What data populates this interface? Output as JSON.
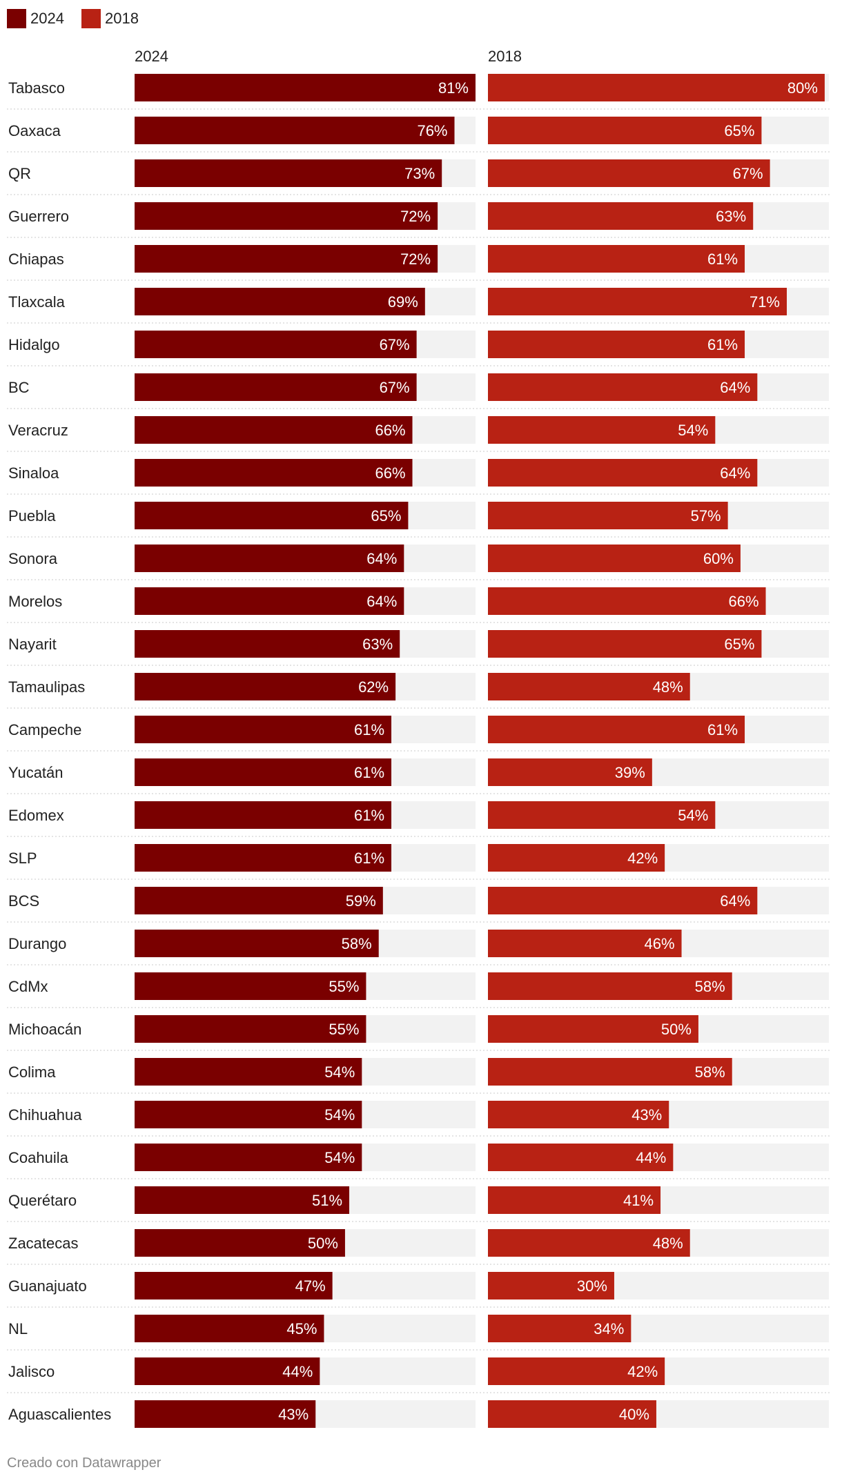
{
  "chart_data": {
    "type": "bar",
    "orientation": "horizontal",
    "layout": "small-multiples",
    "categories": [
      "Tabasco",
      "Oaxaca",
      "QR",
      "Guerrero",
      "Chiapas",
      "Tlaxcala",
      "Hidalgo",
      "BC",
      "Veracruz",
      "Sinaloa",
      "Puebla",
      "Sonora",
      "Morelos",
      "Nayarit",
      "Tamaulipas",
      "Campeche",
      "Yucatán",
      "Edomex",
      "SLP",
      "BCS",
      "Durango",
      "CdMx",
      "Michoacán",
      "Colima",
      "Chihuahua",
      "Coahuila",
      "Querétaro",
      "Zacatecas",
      "Guanajuato",
      "NL",
      "Jalisco",
      "Aguascalientes"
    ],
    "series": [
      {
        "name": "2024",
        "color": "#7a0000",
        "values": [
          81,
          76,
          73,
          72,
          72,
          69,
          67,
          67,
          66,
          66,
          65,
          64,
          64,
          63,
          62,
          61,
          61,
          61,
          61,
          59,
          58,
          55,
          55,
          54,
          54,
          54,
          51,
          50,
          47,
          45,
          44,
          43
        ]
      },
      {
        "name": "2018",
        "color": "#b82214",
        "values": [
          80,
          65,
          67,
          63,
          61,
          71,
          61,
          64,
          54,
          64,
          57,
          60,
          66,
          65,
          48,
          61,
          39,
          54,
          42,
          64,
          46,
          58,
          50,
          58,
          43,
          44,
          41,
          48,
          30,
          34,
          42,
          40
        ]
      }
    ],
    "value_suffix": "%",
    "xlim": [
      0,
      81
    ],
    "background_bar_color": "#f2f2f2",
    "legend": {
      "position": "top-left",
      "entries": [
        "2024",
        "2018"
      ]
    }
  },
  "footer": {
    "credit": "Creado con Datawrapper"
  }
}
